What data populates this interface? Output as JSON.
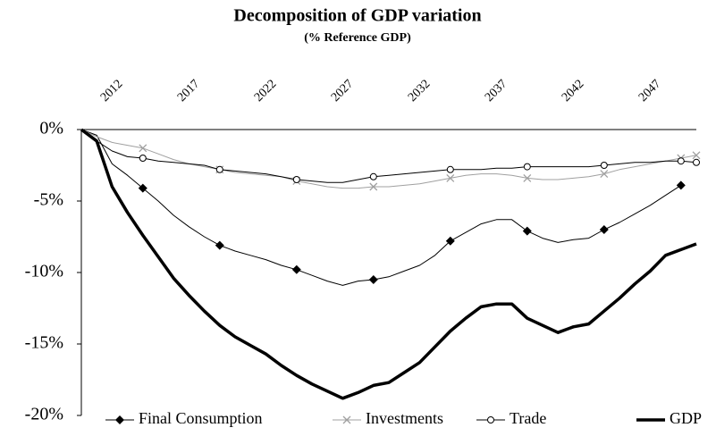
{
  "chart_data": {
    "type": "line",
    "title": "Decomposition of GDP variation",
    "subtitle": "(% Reference GDP)",
    "categories": [
      null,
      null,
      "2012",
      null,
      null,
      null,
      null,
      "2017",
      null,
      null,
      null,
      null,
      "2022",
      null,
      null,
      null,
      null,
      "2027",
      null,
      null,
      null,
      null,
      "2032",
      null,
      null,
      null,
      null,
      "2037",
      null,
      null,
      null,
      null,
      "2042",
      null,
      null,
      null,
      null,
      "2047",
      null,
      null,
      null
    ],
    "series": [
      {
        "name": "Final Consumption",
        "color": "#000000",
        "marker": "diamond",
        "line_width": 1,
        "values": [
          0,
          -0.4,
          -2.4,
          -3.2,
          -4.1,
          -5.0,
          -6.0,
          -6.8,
          -7.5,
          -8.1,
          -8.5,
          -8.8,
          -9.1,
          -9.5,
          -9.8,
          -10.2,
          -10.6,
          -10.9,
          -10.6,
          -10.5,
          -10.3,
          -9.9,
          -9.5,
          -8.8,
          -7.8,
          -7.2,
          -6.6,
          -6.3,
          -6.3,
          -7.1,
          -7.6,
          -7.9,
          -7.7,
          -7.6,
          -7.0,
          -6.5,
          -5.9,
          -5.3,
          -4.6,
          -3.9,
          null
        ]
      },
      {
        "name": "Investments",
        "color": "#a0a0a0",
        "marker": "x",
        "line_width": 1,
        "values": [
          0,
          -0.5,
          -0.9,
          -1.1,
          -1.3,
          -1.7,
          -2.1,
          -2.4,
          -2.6,
          -2.8,
          -3.0,
          -3.1,
          -3.2,
          -3.3,
          -3.6,
          -3.8,
          -4.0,
          -4.1,
          -4.1,
          -4.0,
          -4.0,
          -3.9,
          -3.8,
          -3.6,
          -3.4,
          -3.2,
          -3.1,
          -3.1,
          -3.2,
          -3.4,
          -3.5,
          -3.5,
          -3.4,
          -3.3,
          -3.1,
          -2.8,
          -2.6,
          -2.4,
          -2.2,
          -2.0,
          -1.8
        ]
      },
      {
        "name": "Trade",
        "color": "#000000",
        "marker": "circle",
        "line_width": 1,
        "values": [
          0,
          -0.8,
          -1.5,
          -1.9,
          -2.0,
          -2.2,
          -2.3,
          -2.4,
          -2.5,
          -2.8,
          -2.9,
          -3.0,
          -3.1,
          -3.3,
          -3.5,
          -3.6,
          -3.7,
          -3.7,
          -3.5,
          -3.3,
          -3.2,
          -3.1,
          -3.0,
          -2.9,
          -2.8,
          -2.8,
          -2.8,
          -2.7,
          -2.7,
          -2.6,
          -2.6,
          -2.6,
          -2.6,
          -2.6,
          -2.5,
          -2.4,
          -2.3,
          -2.3,
          -2.2,
          -2.2,
          -2.3
        ]
      },
      {
        "name": "GDP",
        "color": "#000000",
        "marker": "none",
        "line_width": 3.5,
        "values": [
          0,
          -0.8,
          -4.0,
          -5.8,
          -7.4,
          -8.9,
          -10.4,
          -11.6,
          -12.7,
          -13.7,
          -14.5,
          -15.1,
          -15.7,
          -16.5,
          -17.2,
          -17.8,
          -18.3,
          -18.8,
          -18.4,
          -17.9,
          -17.7,
          -17.0,
          -16.3,
          -15.2,
          -14.1,
          -13.2,
          -12.4,
          -12.2,
          -12.2,
          -13.2,
          -13.7,
          -14.2,
          -13.8,
          -13.6,
          -12.7,
          -11.8,
          -10.8,
          -9.9,
          -8.8,
          -8.4,
          -8.0
        ]
      }
    ],
    "ylim": [
      -20,
      0
    ],
    "yticks": [
      {
        "value": -20,
        "label": "-20%"
      },
      {
        "value": -15,
        "label": "-15%"
      },
      {
        "value": -10,
        "label": "-10%"
      },
      {
        "value": -5,
        "label": "-5%"
      },
      {
        "value": 0,
        "label": "0%"
      }
    ],
    "legend": "bottom"
  }
}
